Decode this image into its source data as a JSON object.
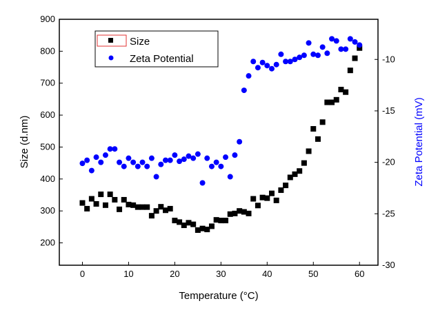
{
  "chart_data": {
    "type": "scatter",
    "xlabel": "Temperature (°C)",
    "ylabel": "Size (d.nm)",
    "y2label": "Zeta Potential (mV)",
    "xlim": [
      -5,
      64
    ],
    "ylim": [
      130,
      900
    ],
    "y2lim": [
      -30,
      -6.1
    ],
    "xticks": [
      0,
      10,
      20,
      30,
      40,
      50,
      60
    ],
    "yticks": [
      200,
      300,
      400,
      500,
      600,
      700,
      800,
      900
    ],
    "y2ticks": [
      -30,
      -25,
      -20,
      -15,
      -10
    ],
    "legend_placement": "top-left",
    "grid": false,
    "series": [
      {
        "name": "Size",
        "axis": "left",
        "marker": "square",
        "color": "#000000",
        "x": [
          0,
          1,
          2,
          3,
          4,
          5,
          6,
          7,
          8,
          9,
          10,
          11,
          12,
          13,
          14,
          15,
          16,
          17,
          18,
          19,
          20,
          21,
          22,
          23,
          24,
          25,
          26,
          27,
          28,
          29,
          30,
          31,
          32,
          33,
          34,
          35,
          36,
          37,
          38,
          39,
          40,
          41,
          42,
          43,
          44,
          45,
          46,
          47,
          48,
          49,
          50,
          51,
          52,
          53,
          54,
          55,
          56,
          57,
          58,
          59,
          60
        ],
        "y": [
          325,
          307,
          338,
          322,
          352,
          318,
          352,
          335,
          305,
          335,
          320,
          318,
          312,
          312,
          312,
          285,
          300,
          313,
          302,
          307,
          270,
          265,
          255,
          263,
          258,
          240,
          245,
          242,
          252,
          272,
          270,
          270,
          290,
          292,
          300,
          297,
          292,
          338,
          317,
          342,
          340,
          355,
          333,
          365,
          380,
          405,
          415,
          425,
          450,
          487,
          557,
          525,
          578,
          640,
          640,
          648,
          680,
          672,
          740,
          778,
          810
        ]
      },
      {
        "name": "Zeta Potential",
        "axis": "right",
        "marker": "circle",
        "color": "#0000ff",
        "x": [
          0,
          1,
          2,
          3,
          4,
          5,
          6,
          7,
          8,
          9,
          10,
          11,
          12,
          13,
          14,
          15,
          16,
          17,
          18,
          19,
          20,
          21,
          22,
          23,
          24,
          25,
          26,
          27,
          28,
          29,
          30,
          31,
          32,
          33,
          34,
          35,
          36,
          37,
          38,
          39,
          40,
          41,
          42,
          43,
          44,
          45,
          46,
          47,
          48,
          49,
          50,
          51,
          52,
          53,
          54,
          55,
          56,
          57,
          58,
          59,
          60
        ],
        "y": [
          -20.1,
          -19.8,
          -20.8,
          -19.5,
          -20.0,
          -19.3,
          -18.7,
          -18.7,
          -20.0,
          -20.4,
          -19.6,
          -20.0,
          -20.4,
          -20.0,
          -20.4,
          -19.6,
          -21.4,
          -20.2,
          -19.8,
          -19.8,
          -19.3,
          -19.9,
          -19.7,
          -19.4,
          -19.6,
          -19.2,
          -22.0,
          -19.6,
          -20.4,
          -20.0,
          -20.4,
          -19.5,
          -21.4,
          -19.3,
          -18.0,
          -13.0,
          -11.6,
          -10.2,
          -10.8,
          -10.3,
          -10.6,
          -10.9,
          -10.5,
          -9.5,
          -10.2,
          -10.2,
          -10.0,
          -9.8,
          -9.6,
          -8.4,
          -9.5,
          -9.6,
          -8.8,
          -9.4,
          -8.0,
          -8.2,
          -9.0,
          -9.0,
          -8.0,
          -8.3,
          -8.6
        ]
      }
    ]
  }
}
